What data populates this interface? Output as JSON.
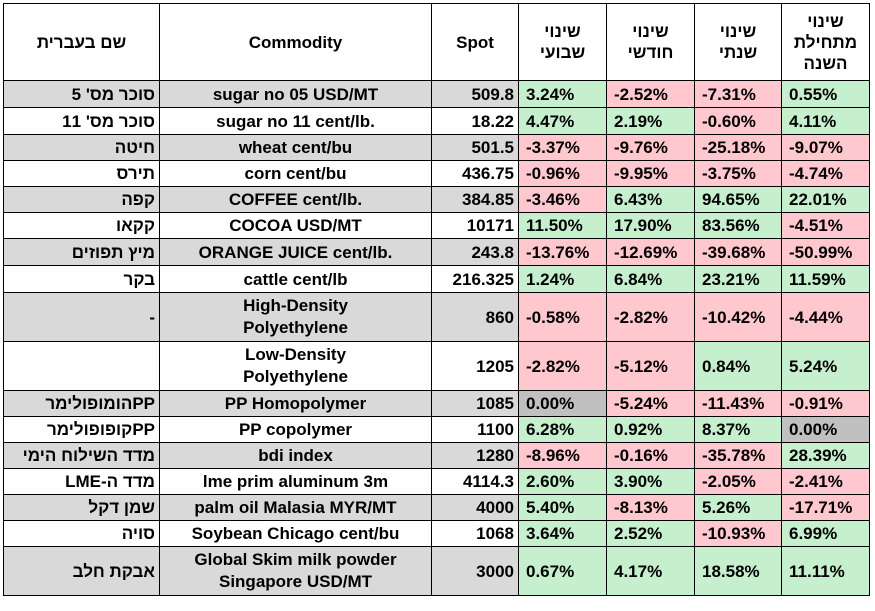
{
  "headers": {
    "hebrew_name": "שם בעברית",
    "commodity": "Commodity",
    "spot": "Spot",
    "weekly": "שינוי שבועי",
    "monthly": "שינוי חודשי",
    "yearly": "שינוי שנתי",
    "ytd": "שינוי מתחילת השנה"
  },
  "colors": {
    "positive": "#c6efce",
    "negative": "#ffc7ce",
    "neutral": "#c0c0c0",
    "row_shade": "#d9d9d9"
  },
  "rows": [
    {
      "hebrew": "סוכר מס' 5",
      "commodity": "sugar no 05 USD/MT",
      "spot": "509.8",
      "weekly": "3.24%",
      "monthly": "-2.52%",
      "yearly": "-7.31%",
      "ytd": "0.55%"
    },
    {
      "hebrew": "סוכר מס' 11",
      "commodity": "sugar no 11 cent/lb.",
      "spot": "18.22",
      "weekly": "4.47%",
      "monthly": "2.19%",
      "yearly": "-0.60%",
      "ytd": "4.11%"
    },
    {
      "hebrew": "חיטה",
      "commodity": "wheat cent/bu",
      "spot": "501.5",
      "weekly": "-3.37%",
      "monthly": "-9.76%",
      "yearly": "-25.18%",
      "ytd": "-9.07%"
    },
    {
      "hebrew": "תירס",
      "commodity": "corn cent/bu",
      "spot": "436.75",
      "weekly": "-0.96%",
      "monthly": "-9.95%",
      "yearly": "-3.75%",
      "ytd": "-4.74%"
    },
    {
      "hebrew": "קפה",
      "commodity": "COFFEE cent/lb.",
      "spot": "384.85",
      "weekly": "-3.46%",
      "monthly": "6.43%",
      "yearly": "94.65%",
      "ytd": "22.01%"
    },
    {
      "hebrew": "קקאו",
      "commodity": "COCOA USD/MT",
      "spot": "10171",
      "weekly": "11.50%",
      "monthly": "17.90%",
      "yearly": "83.56%",
      "ytd": "-4.51%"
    },
    {
      "hebrew": "מיץ תפוזים",
      "commodity": "ORANGE JUICE cent/lb.",
      "spot": "243.8",
      "weekly": "-13.76%",
      "monthly": "-12.69%",
      "yearly": "-39.68%",
      "ytd": "-50.99%"
    },
    {
      "hebrew": "בקר",
      "commodity": "cattle cent/lb",
      "spot": "216.325",
      "weekly": "1.24%",
      "monthly": "6.84%",
      "yearly": "23.21%",
      "ytd": "11.59%"
    },
    {
      "hebrew": "-",
      "commodity_l1": "High-Density",
      "commodity_l2": "Polyethylene",
      "spot": "860",
      "weekly": "-0.58%",
      "monthly": "-2.82%",
      "yearly": "-10.42%",
      "ytd": "-4.44%"
    },
    {
      "hebrew": "",
      "commodity_l1": "Low-Density",
      "commodity_l2": "Polyethylene",
      "spot": "1205",
      "weekly": "-2.82%",
      "monthly": "-5.12%",
      "yearly": "0.84%",
      "ytd": "5.24%"
    },
    {
      "hebrew": "PPהומופולימר",
      "commodity": "PP Homopolymer",
      "spot": "1085",
      "weekly": "0.00%",
      "monthly": "-5.24%",
      "yearly": "-11.43%",
      "ytd": "-0.91%"
    },
    {
      "hebrew": "PPקופופולימר",
      "commodity": "PP copolymer",
      "spot": "1100",
      "weekly": "6.28%",
      "monthly": "0.92%",
      "yearly": "8.37%",
      "ytd": "0.00%"
    },
    {
      "hebrew": "מדד השילוח הימי",
      "commodity": "bdi index",
      "spot": "1280",
      "weekly": "-8.96%",
      "monthly": "-0.16%",
      "yearly": "-35.78%",
      "ytd": "28.39%"
    },
    {
      "hebrew": "מדד ה-LME",
      "commodity": "lme prim aluminum 3m",
      "spot": "4114.3",
      "weekly": "2.60%",
      "monthly": "3.90%",
      "yearly": "-2.05%",
      "ytd": "-2.41%"
    },
    {
      "hebrew": "שמן דקל",
      "commodity": "palm oil Malasia MYR/MT",
      "spot": "4000",
      "weekly": "5.40%",
      "monthly": "-8.13%",
      "yearly": "5.26%",
      "ytd": "-17.71%"
    },
    {
      "hebrew": "סויה",
      "commodity": "Soybean Chicago cent/bu",
      "spot": "1068",
      "weekly": "3.64%",
      "monthly": "2.52%",
      "yearly": "-10.93%",
      "ytd": "6.99%"
    },
    {
      "hebrew": "אבקת חלב",
      "commodity_l1": "Global Skim milk powder",
      "commodity_l2": "Singapore USD/MT",
      "spot": "3000",
      "weekly": "0.67%",
      "monthly": "4.17%",
      "yearly": "18.58%",
      "ytd": "11.11%"
    }
  ]
}
